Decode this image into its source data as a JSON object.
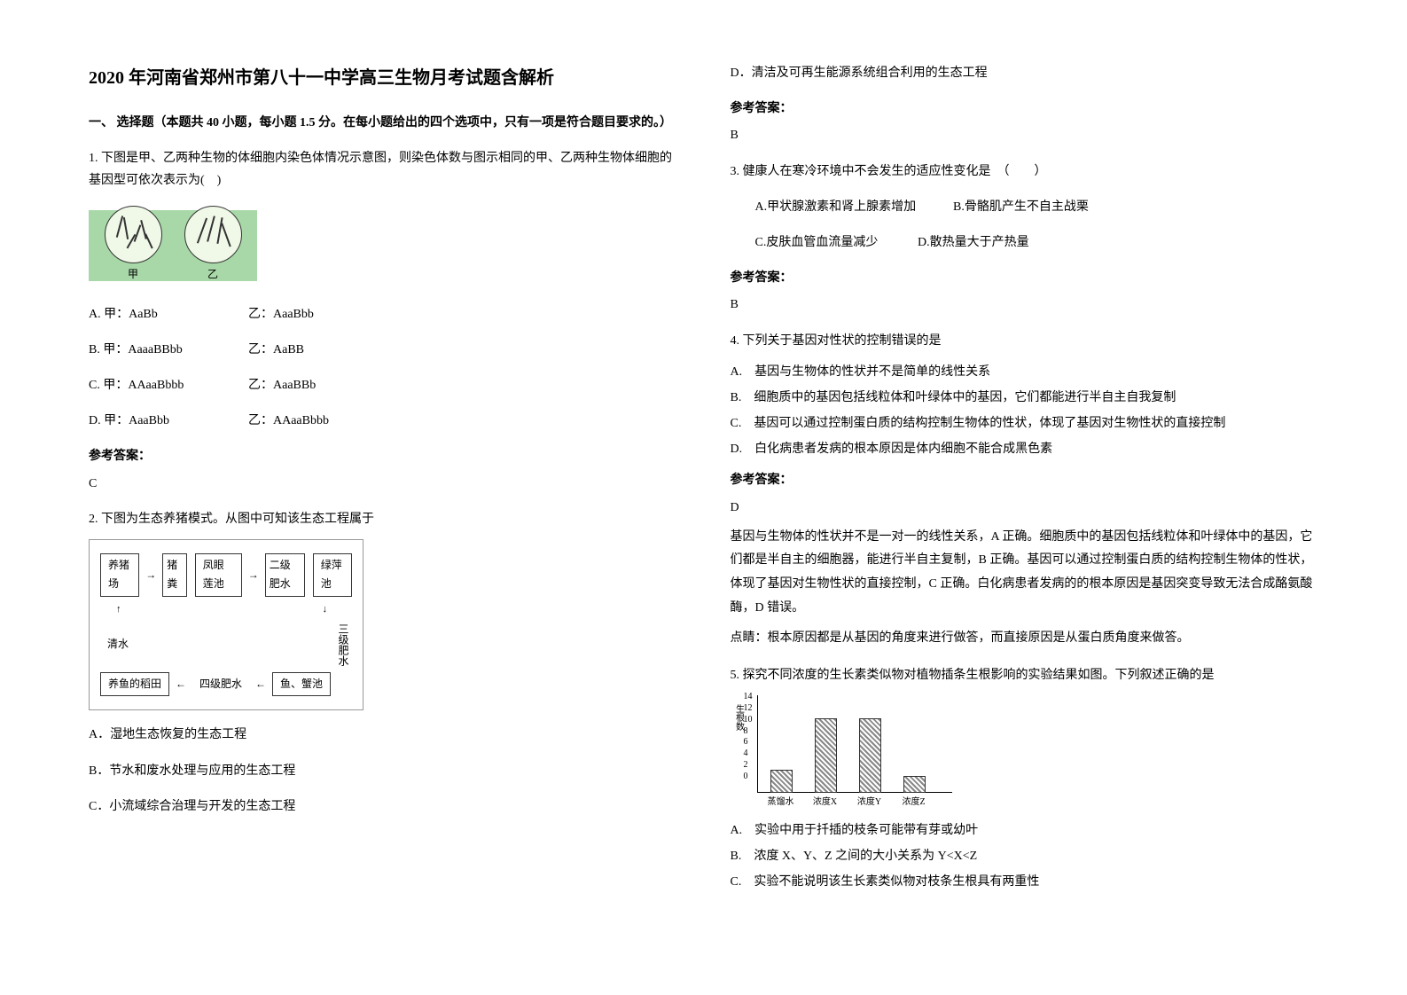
{
  "title": "2020 年河南省郑州市第八十一中学高三生物月考试题含解析",
  "section1_header": "一、 选择题（本题共 40 小题，每小题 1.5 分。在每小题给出的四个选项中，只有一项是符合题目要求的。）",
  "q1": {
    "text": "1. 下图是甲、乙两种生物的体细胞内染色体情况示意图，则染色体数与图示相同的甲、乙两种生物体细胞的基因型可依次表示为(　)",
    "cell_labels": [
      "甲",
      "乙"
    ],
    "options": {
      "a_left": "A. 甲：AaBb",
      "a_right": "乙：AaaBbb",
      "b_left": "B. 甲：AaaaBBbb",
      "b_right": "乙：AaBB",
      "c_left": "C. 甲：AAaaBbbb",
      "c_right": "乙：AaaBBb",
      "d_left": "D. 甲：AaaBbb",
      "d_right": "乙：AAaaBbbb"
    },
    "answer_label": "参考答案：",
    "answer": "C"
  },
  "q2": {
    "text": "2. 下图为生态养猪模式。从图中可知该生态工程属于",
    "flow_boxes": {
      "b1": "养猪场",
      "b2": "猪粪",
      "b3": "凤眼莲池",
      "b4": "二级肥水",
      "b5": "绿萍池",
      "b6": "清水",
      "b7": "三级肥水",
      "b8": "养鱼的稻田",
      "b9": "四级肥水",
      "b10": "鱼、蟹池"
    },
    "options": {
      "a": "A．湿地生态恢复的生态工程",
      "b": "B．节水和废水处理与应用的生态工程",
      "c": "C．小流域综合治理与开发的生态工程",
      "d": "D．清洁及可再生能源系统组合利用的生态工程"
    },
    "answer_label": "参考答案：",
    "answer": "B"
  },
  "q3": {
    "text": "3. 健康人在寒冷环境中不会发生的适应性变化是　（　　）",
    "options": {
      "a": "A.甲状腺激素和肾上腺素增加",
      "b": "B.骨骼肌产生不自主战栗",
      "c": "C.皮肤血管血流量减少",
      "d": "D.散热量大于产热量"
    },
    "answer_label": "参考答案：",
    "answer": "B"
  },
  "q4": {
    "text": "4. 下列关于基因对性状的控制错误的是",
    "options": {
      "a": "A.　基因与生物体的性状并不是简单的线性关系",
      "b": "B.　细胞质中的基因包括线粒体和叶绿体中的基因，它们都能进行半自主自我复制",
      "c": "C.　基因可以通过控制蛋白质的结构控制生物体的性状，体现了基因对生物性状的直接控制",
      "d": "D.　白化病患者发病的根本原因是体内细胞不能合成黑色素"
    },
    "answer_label": "参考答案：",
    "answer": "D",
    "explanation1": "基因与生物体的性状并不是一对一的线性关系，A 正确。细胞质中的基因包括线粒体和叶绿体中的基因，它们都是半自主的细胞器，能进行半自主复制，B 正确。基因可以通过控制蛋白质的结构控制生物体的性状，体现了基因对生物性状的直接控制，C 正确。白化病患者发病的的根本原因是基因突变导致无法合成酪氨酸酶，D 错误。",
    "explanation2": "点睛：根本原因都是从基因的角度来进行做答，而直接原因是从蛋白质角度来做答。"
  },
  "q5": {
    "text": "5. 探究不同浓度的生长素类似物对植物插条生根影响的实验结果如图。下列叙述正确的是",
    "chart": {
      "y_label": "生根数",
      "y_ticks": [
        0,
        2,
        4,
        6,
        8,
        10,
        12,
        14
      ],
      "x_labels": [
        "蒸馏水",
        "浓度X",
        "浓度Y",
        "浓度Z"
      ],
      "values": [
        4,
        13,
        13,
        3
      ],
      "bar_color_pattern": "hatched-gray",
      "max_y": 14
    },
    "options": {
      "a": "A.　实验中用于扦插的枝条可能带有芽或幼叶",
      "b": "B.　浓度 X、Y、Z 之间的大小关系为 Y<X<Z",
      "c": "C.　实验不能说明该生长素类似物对枝条生根具有两重性"
    }
  }
}
